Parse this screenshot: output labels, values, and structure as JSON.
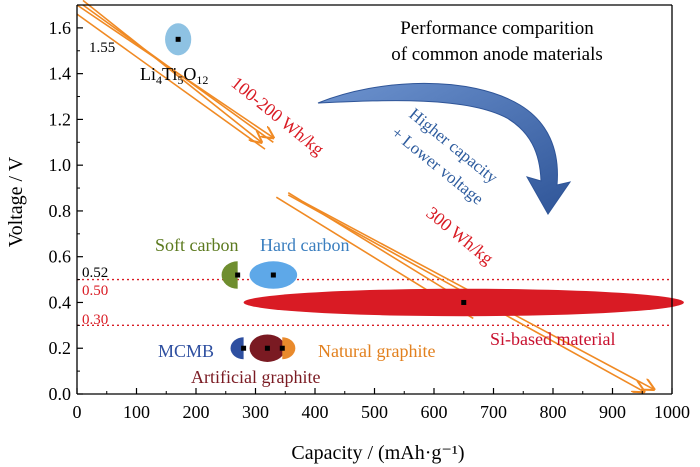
{
  "chart_data": {
    "type": "scatter",
    "title": "Performance comparition\nof common anode materials",
    "xlabel": "Capacity / (mAh·g⁻¹)",
    "ylabel": "Voltage / V",
    "xlim": [
      0,
      1000
    ],
    "ylim": [
      0,
      1.7
    ],
    "xticks": [
      0,
      100,
      200,
      300,
      400,
      500,
      600,
      700,
      800,
      900,
      1000
    ],
    "yticks": [
      0.0,
      0.2,
      0.4,
      0.6,
      0.8,
      1.0,
      1.2,
      1.4,
      1.6
    ],
    "grid": false,
    "materials": [
      {
        "name": "Li4Ti5O12",
        "x": 170,
        "y": 1.55,
        "rx": 22,
        "ry": 0.07,
        "color": "#8ec2e3"
      },
      {
        "name": "Soft carbon",
        "x": 270,
        "y": 0.52,
        "rx": 27,
        "ry": 0.06,
        "color": "#6f8e2f",
        "half": "left"
      },
      {
        "name": "Hard carbon",
        "x": 330,
        "y": 0.52,
        "rx": 40,
        "ry": 0.06,
        "color": "#5ea8e8"
      },
      {
        "name": "Si-based material",
        "x": 650,
        "y": 0.4,
        "rx": 370,
        "ry": 0.06,
        "color": "#d91b24"
      },
      {
        "name": "MCMB",
        "x": 280,
        "y": 0.2,
        "rx": 22,
        "ry": 0.048,
        "color": "#2e4fa0",
        "half": "left"
      },
      {
        "name": "Artificial graphite",
        "x": 320,
        "y": 0.2,
        "rx": 30,
        "ry": 0.06,
        "color": "#7a1a22"
      },
      {
        "name": "Natural graphite",
        "x": 345,
        "y": 0.2,
        "rx": 22,
        "ry": 0.048,
        "color": "#e98a2c",
        "half": "right"
      }
    ],
    "annotations": {
      "v155": "1.55",
      "v052": "0.52",
      "v050": "0.50",
      "v030": "0.30",
      "energy1": "100-200 Wh/kg",
      "energy2": "300 Wh/kg",
      "trend": "Higher capacity\n+ Lower voltage"
    },
    "reference_lines": [
      {
        "y": 0.5,
        "color": "#d91b24",
        "style": "dotted"
      },
      {
        "y": 0.3,
        "color": "#d91b24",
        "style": "dotted"
      }
    ],
    "colors": {
      "axis": "#000000",
      "arrow_orange": "#f08a24",
      "energy_red": "#d91b24",
      "trend_blue": "#2e5c9e",
      "big_arrow_blue": "#4a70b0"
    }
  }
}
